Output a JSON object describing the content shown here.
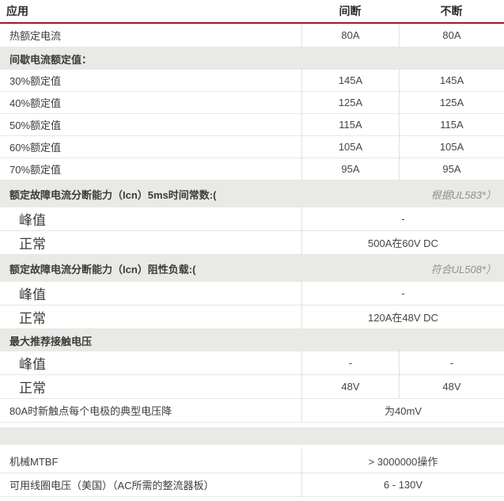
{
  "table": {
    "header": {
      "application": "应用",
      "intermittent": "间断",
      "continuous": "不断"
    },
    "rows": [
      {
        "type": "two",
        "label": "热额定电流",
        "v1": "80A",
        "v2": "80A"
      },
      {
        "type": "band",
        "label": "间歇电流额定值："
      },
      {
        "type": "two",
        "label": "30%额定值",
        "v1": "145A",
        "v2": "145A"
      },
      {
        "type": "two",
        "label": "40%额定值",
        "v1": "125A",
        "v2": "125A"
      },
      {
        "type": "two",
        "label": "50%额定值",
        "v1": "115A",
        "v2": "115A"
      },
      {
        "type": "two",
        "label": "60%额定值",
        "v1": "105A",
        "v2": "105A"
      },
      {
        "type": "two",
        "label": "70%额定值",
        "v1": "95A",
        "v2": "95A"
      },
      {
        "type": "band-note",
        "label": "额定故障电流分断能力（Icn）5ms时间常数:(",
        "note": "根据UL583*）"
      },
      {
        "type": "sub-merged",
        "label": "峰值",
        "value": "-"
      },
      {
        "type": "sub-merged",
        "label": "正常",
        "value": "500A在60V DC"
      },
      {
        "type": "band-note",
        "label": "额定故障电流分断能力（Icn）阻性负载:(",
        "note": "符合UL508*）"
      },
      {
        "type": "sub-merged",
        "label": "峰值",
        "value": "-"
      },
      {
        "type": "sub-merged",
        "label": "正常",
        "value": "120A在48V DC"
      },
      {
        "type": "band",
        "label": "最大推荐接触电压"
      },
      {
        "type": "sub-two",
        "label": "峰值",
        "v1": "-",
        "v2": "-"
      },
      {
        "type": "sub-two",
        "label": "正常",
        "v1": "48V",
        "v2": "48V"
      },
      {
        "type": "merged",
        "label": "80A时新触点每个电极的典型电压降",
        "value": "为40mV"
      },
      {
        "type": "empty-band"
      },
      {
        "type": "merged",
        "label": "机械MTBF",
        "value": "> 3000000操作"
      },
      {
        "type": "merged",
        "label": "可用线圈电压（美国）（AC所需的整流器板）",
        "value": "6 - 130V"
      }
    ],
    "colors": {
      "accent_red": "#9b1b33",
      "band_background": "#e9e9e6",
      "note_gray": "#91918c"
    }
  }
}
